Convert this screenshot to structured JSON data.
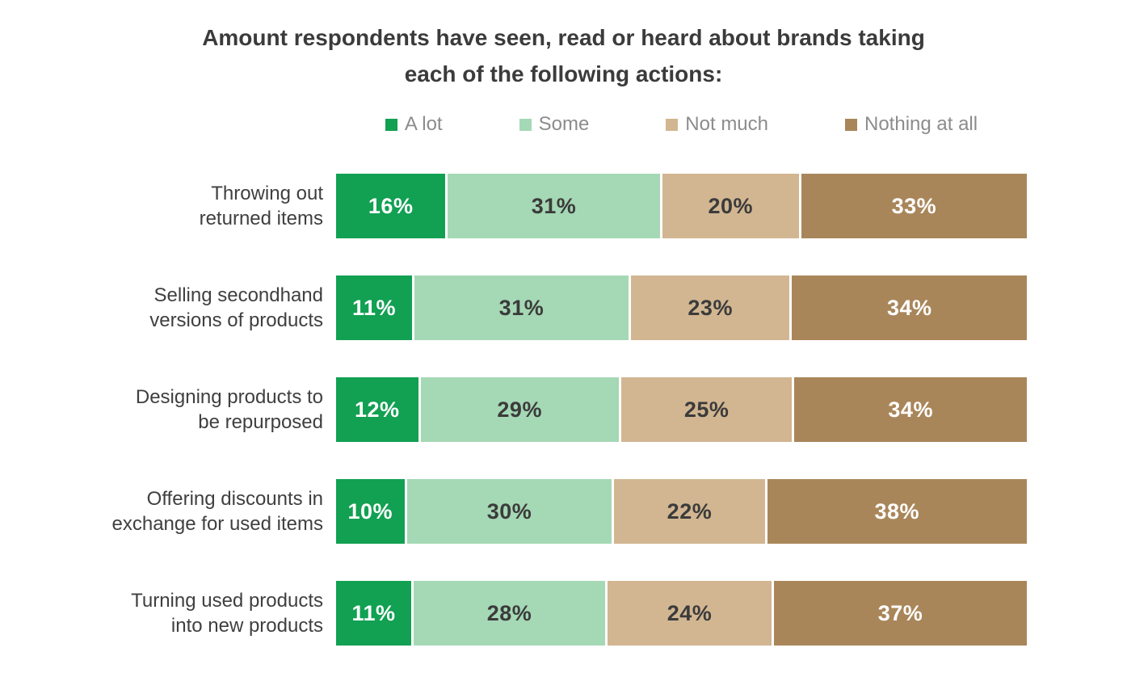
{
  "chart_data": {
    "type": "bar",
    "stacked": true,
    "orientation": "horizontal",
    "title_line1": "Amount respondents have seen, read or heard about brands taking",
    "title_line2": "each of the following actions:",
    "categories": [
      "Throwing out returned items",
      "Selling secondhand versions of products",
      "Designing products to be repurposed",
      "Offering discounts in exchange for used items",
      "Turning used products into new products"
    ],
    "series": [
      {
        "name": "A lot",
        "color": "#12a052",
        "text_color": "#ffffff",
        "values": [
          16,
          11,
          12,
          10,
          11
        ]
      },
      {
        "name": "Some",
        "color": "#a5d8b5",
        "text_color": "#3b3b3b",
        "values": [
          31,
          31,
          29,
          30,
          28
        ]
      },
      {
        "name": "Not much",
        "color": "#d2b691",
        "text_color": "#3b3b3b",
        "values": [
          20,
          23,
          25,
          22,
          24
        ]
      },
      {
        "name": "Nothing at all",
        "color": "#a9865a",
        "text_color": "#ffffff",
        "values": [
          33,
          34,
          34,
          38,
          37
        ]
      }
    ],
    "value_format": "percent",
    "xlim": [
      0,
      100
    ],
    "legend_position": "top",
    "grid": false,
    "background": "#ffffff"
  },
  "rows": [
    {
      "label_line1": "Throwing out",
      "label_line2": "returned items",
      "values": [
        "16%",
        "31%",
        "20%",
        "33%"
      ]
    },
    {
      "label_line1": "Selling secondhand",
      "label_line2": "versions of products",
      "values": [
        "11%",
        "31%",
        "23%",
        "34%"
      ]
    },
    {
      "label_line1": "Designing products to",
      "label_line2": "be repurposed",
      "values": [
        "12%",
        "29%",
        "25%",
        "34%"
      ]
    },
    {
      "label_line1": "Offering discounts in",
      "label_line2": "exchange for used items",
      "values": [
        "10%",
        "30%",
        "22%",
        "38%"
      ]
    },
    {
      "label_line1": "Turning used products",
      "label_line2": "into new products",
      "values": [
        "11%",
        "28%",
        "24%",
        "37%"
      ]
    }
  ]
}
